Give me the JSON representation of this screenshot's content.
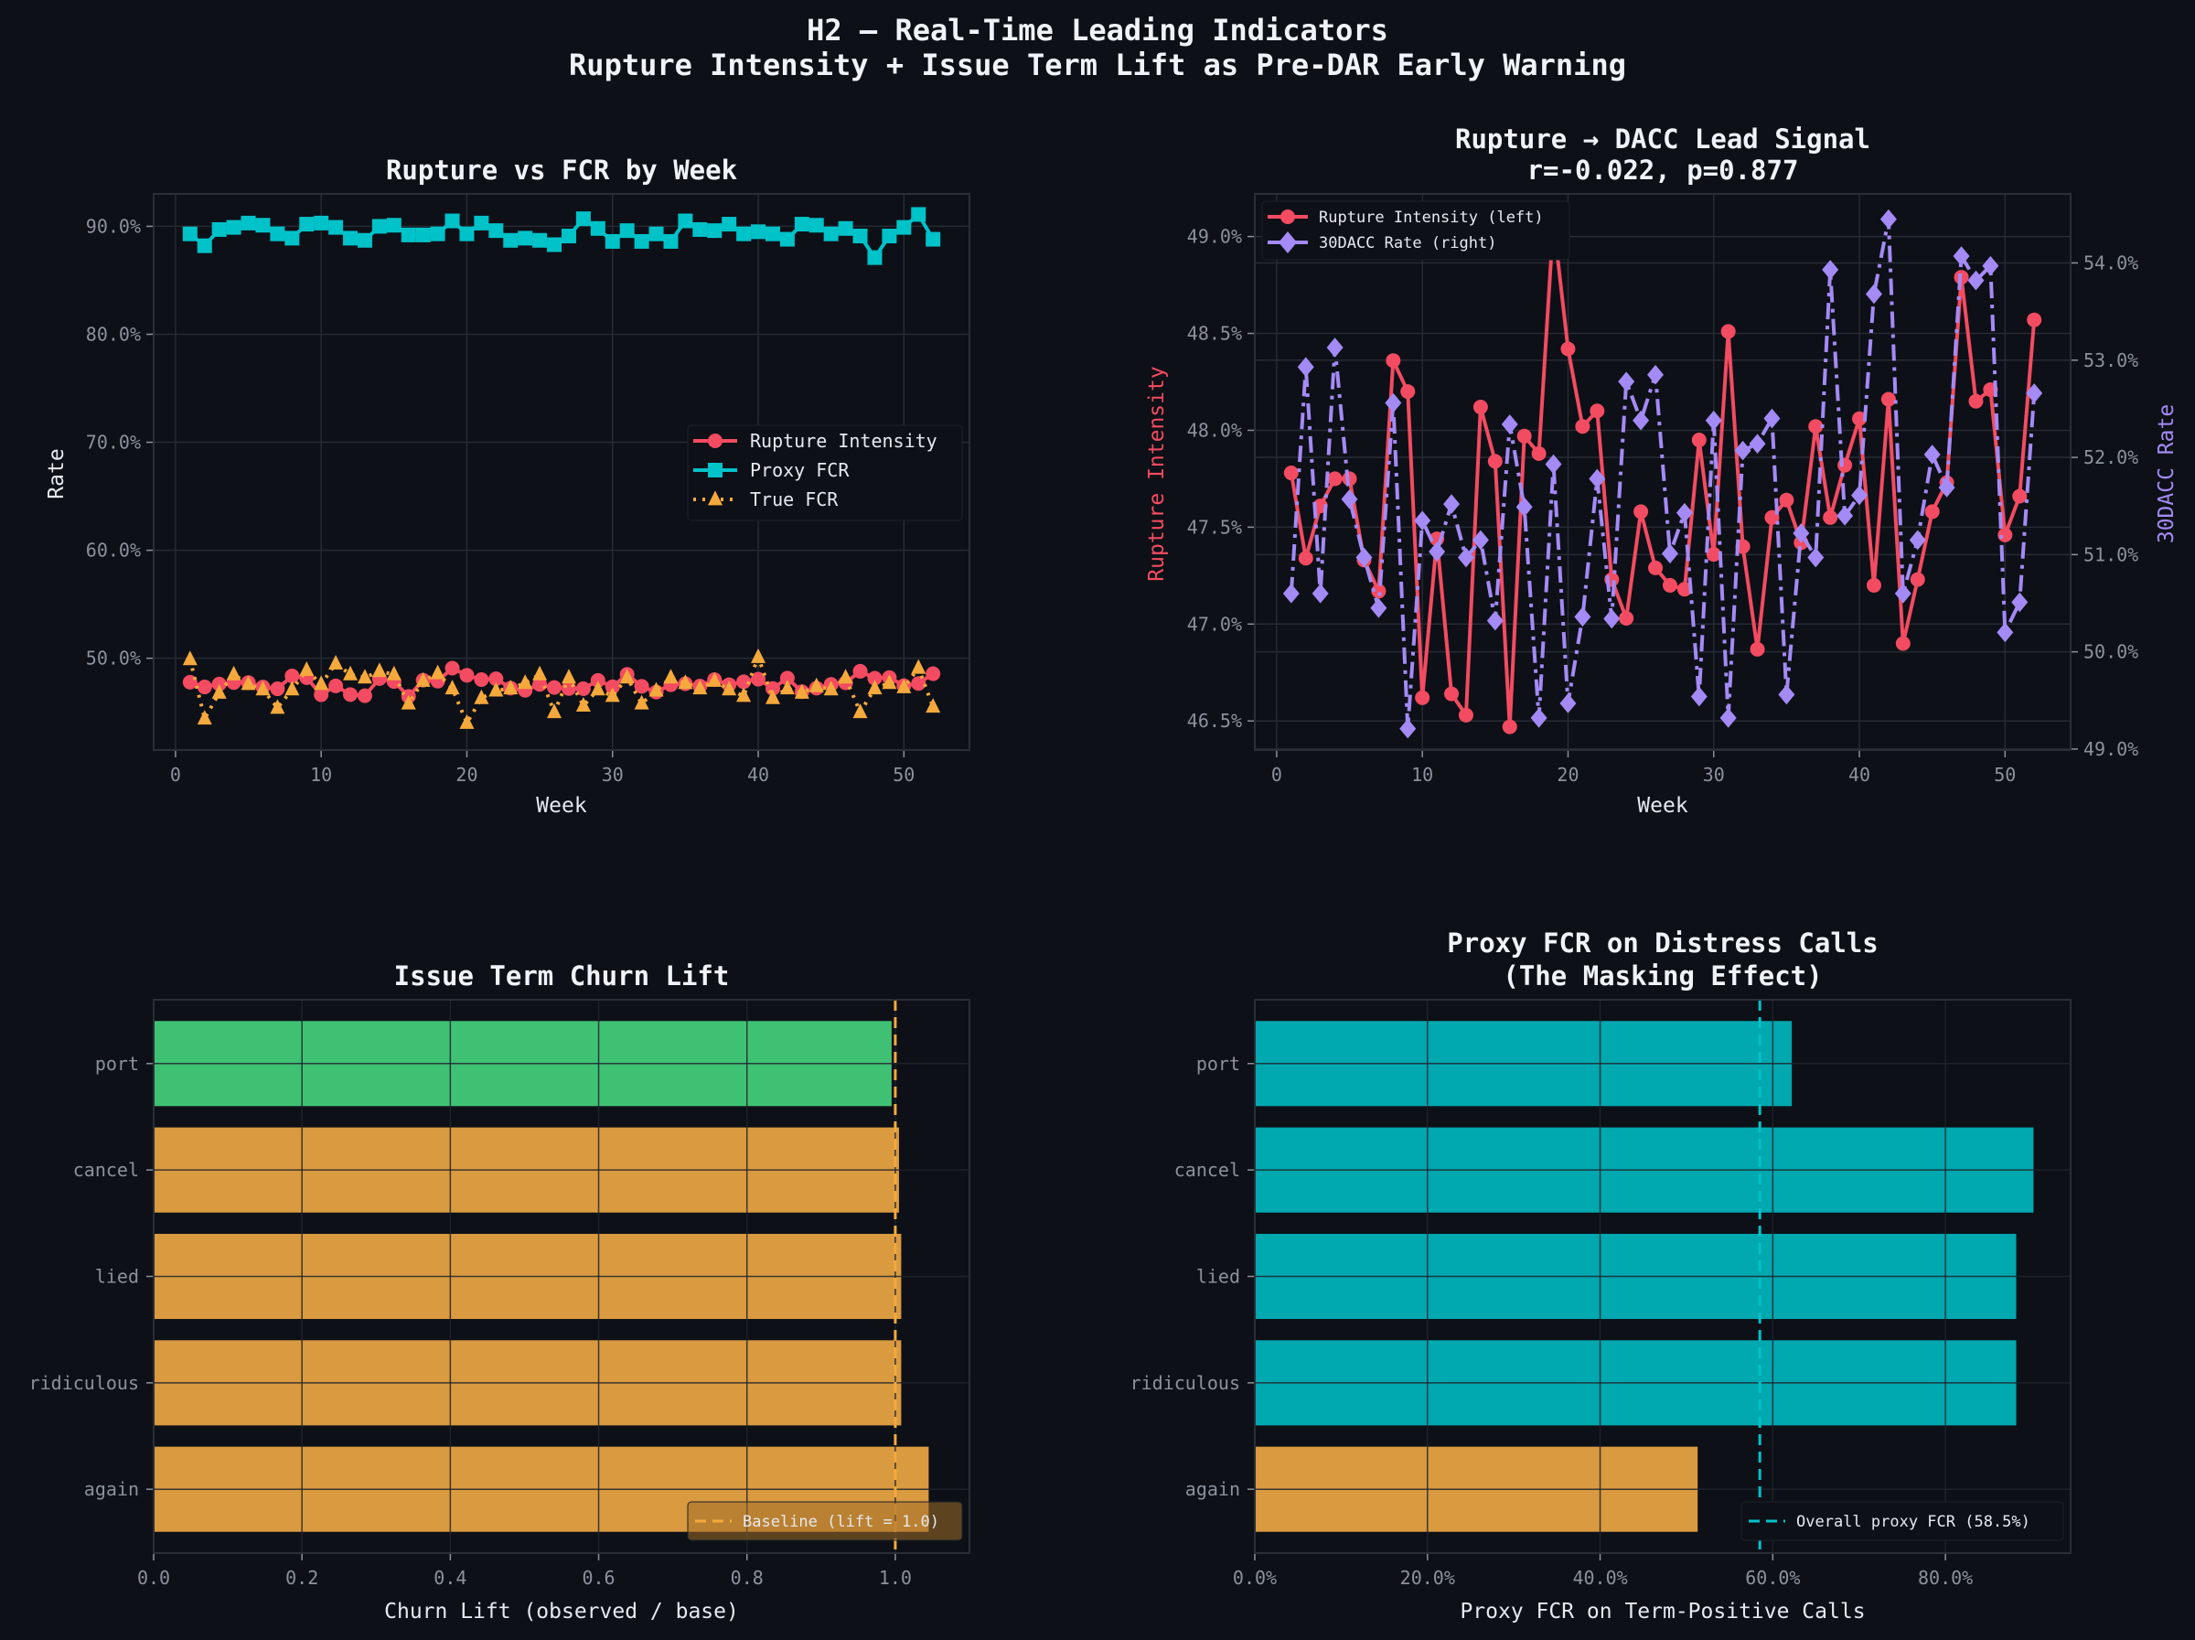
{
  "suptitle": [
    "H2 — Real-Time Leading Indicators",
    "Rupture Intensity + Issue Term Lift as Pre-DAR Early Warning"
  ],
  "colors": {
    "background": "#0d1017",
    "rupture": "#f34b61",
    "proxy_fcr": "#00c2c9",
    "true_fcr": "#f5a93c",
    "dacc": "#a48af5",
    "green_bar": "#3fc174",
    "orange_bar": "#d99a40",
    "teal_bar": "#00a8b0",
    "grid": "#262a33",
    "tick": "#8b929c",
    "text": "#e6e9ee"
  },
  "chart_data": [
    {
      "id": "rupture_vs_fcr",
      "type": "line",
      "title": "Rupture vs FCR by Week",
      "xlabel": "Week",
      "ylabel": "Rate",
      "xlim": [
        -1.5,
        54.5
      ],
      "ylim": [
        41.5,
        93.0
      ],
      "xticks": [
        0,
        10,
        20,
        30,
        40,
        50
      ],
      "yticks": [
        50,
        60,
        70,
        80,
        90
      ],
      "ytick_labels": [
        "50.0%",
        "60.0%",
        "70.0%",
        "80.0%",
        "90.0%"
      ],
      "xtick_labels": [
        "0",
        "10",
        "20",
        "30",
        "40",
        "50"
      ],
      "grid": true,
      "legend_position": "center-right",
      "x": [
        1,
        2,
        3,
        4,
        5,
        6,
        7,
        8,
        9,
        10,
        11,
        12,
        13,
        14,
        15,
        16,
        17,
        18,
        19,
        20,
        21,
        22,
        23,
        24,
        25,
        26,
        27,
        28,
        29,
        30,
        31,
        32,
        33,
        34,
        35,
        36,
        37,
        38,
        39,
        40,
        41,
        42,
        43,
        44,
        45,
        46,
        47,
        48,
        49,
        50,
        51,
        52
      ],
      "series": [
        {
          "name": "Rupture Intensity",
          "color_key": "rupture",
          "marker": "circle",
          "linestyle": "solid",
          "values": [
            47.78,
            47.34,
            47.61,
            47.75,
            47.75,
            47.33,
            47.17,
            48.36,
            48.2,
            46.62,
            47.44,
            46.64,
            46.53,
            48.12,
            47.84,
            46.47,
            47.97,
            47.88,
            49.08,
            48.42,
            48.02,
            48.1,
            47.23,
            47.03,
            47.58,
            47.29,
            47.2,
            47.18,
            47.95,
            47.36,
            48.51,
            47.4,
            46.87,
            47.55,
            47.64,
            47.42,
            48.02,
            47.55,
            47.82,
            48.06,
            47.2,
            48.16,
            46.9,
            47.23,
            47.58,
            47.73,
            48.79,
            48.15,
            48.21,
            47.46,
            47.66,
            48.57
          ]
        },
        {
          "name": "Proxy FCR",
          "color_key": "proxy_fcr",
          "marker": "square",
          "linestyle": "solid",
          "values": [
            89.3,
            88.2,
            89.7,
            89.9,
            90.3,
            90.1,
            89.3,
            88.9,
            90.2,
            90.3,
            89.9,
            88.9,
            88.7,
            90.0,
            90.1,
            89.2,
            89.2,
            89.3,
            90.5,
            89.3,
            90.3,
            89.6,
            88.7,
            88.9,
            88.7,
            88.3,
            89.1,
            90.7,
            89.8,
            88.6,
            89.6,
            88.6,
            89.3,
            88.6,
            90.5,
            89.7,
            89.6,
            90.2,
            89.3,
            89.5,
            89.3,
            88.8,
            90.2,
            90.1,
            89.3,
            89.8,
            89.1,
            87.1,
            89.1,
            89.9,
            91.1,
            88.8
          ]
        },
        {
          "name": "True FCR",
          "color_key": "true_fcr",
          "marker": "triangle",
          "linestyle": "dotted",
          "values": [
            49.9,
            44.4,
            46.8,
            48.5,
            47.6,
            47.1,
            45.4,
            47.1,
            48.9,
            47.6,
            49.5,
            48.5,
            48.2,
            48.8,
            48.5,
            45.8,
            47.9,
            48.6,
            47.2,
            44.0,
            46.3,
            47.0,
            47.2,
            47.7,
            48.5,
            45.0,
            48.2,
            45.6,
            47.1,
            46.5,
            48.2,
            45.8,
            47.0,
            48.2,
            47.7,
            47.2,
            47.9,
            47.1,
            46.5,
            50.1,
            46.3,
            47.2,
            46.8,
            47.4,
            47.1,
            48.2,
            45.0,
            47.2,
            47.7,
            47.3,
            49.1,
            45.5
          ]
        }
      ]
    },
    {
      "id": "rupture_dacc_lead",
      "type": "line",
      "title": "Rupture → DACC Lead Signal",
      "subtitle": "r=-0.022, p=0.877",
      "xlabel": "Week",
      "ylabel": "Rupture Intensity",
      "y2label": "30DACC Rate",
      "xlim": [
        -1.5,
        54.5
      ],
      "ylim": [
        46.35,
        49.22
      ],
      "y2lim": [
        48.99,
        54.71
      ],
      "xticks": [
        0,
        10,
        20,
        30,
        40,
        50
      ],
      "xtick_labels": [
        "0",
        "10",
        "20",
        "30",
        "40",
        "50"
      ],
      "yticks": [
        46.5,
        47.0,
        47.5,
        48.0,
        48.5,
        49.0
      ],
      "ytick_labels": [
        "46.5%",
        "47.0%",
        "47.5%",
        "48.0%",
        "48.5%",
        "49.0%"
      ],
      "y2ticks": [
        49,
        50,
        51,
        52,
        53,
        54
      ],
      "y2tick_labels": [
        "49.0%",
        "50.0%",
        "51.0%",
        "52.0%",
        "53.0%",
        "54.0%"
      ],
      "grid": true,
      "legend_position": "top-left",
      "x": [
        1,
        2,
        3,
        4,
        5,
        6,
        7,
        8,
        9,
        10,
        11,
        12,
        13,
        14,
        15,
        16,
        17,
        18,
        19,
        20,
        21,
        22,
        23,
        24,
        25,
        26,
        27,
        28,
        29,
        30,
        31,
        32,
        33,
        34,
        35,
        36,
        37,
        38,
        39,
        40,
        41,
        42,
        43,
        44,
        45,
        46,
        47,
        48,
        49,
        50,
        51,
        52
      ],
      "series": [
        {
          "name": "Rupture Intensity (left)",
          "axis": "left",
          "color_key": "rupture",
          "marker": "circle",
          "linestyle": "solid",
          "values": [
            47.78,
            47.34,
            47.61,
            47.75,
            47.75,
            47.33,
            47.17,
            48.36,
            48.2,
            46.62,
            47.44,
            46.64,
            46.53,
            48.12,
            47.84,
            46.47,
            47.97,
            47.88,
            49.08,
            48.42,
            48.02,
            48.1,
            47.23,
            47.03,
            47.58,
            47.29,
            47.2,
            47.18,
            47.95,
            47.36,
            48.51,
            47.4,
            46.87,
            47.55,
            47.64,
            47.42,
            48.02,
            47.55,
            47.82,
            48.06,
            47.2,
            48.16,
            46.9,
            47.23,
            47.58,
            47.73,
            48.79,
            48.15,
            48.21,
            47.46,
            47.66,
            48.57
          ]
        },
        {
          "name": "30DACC Rate (right)",
          "axis": "right",
          "color_key": "dacc",
          "marker": "diamond",
          "linestyle": "dashdot",
          "values": [
            50.6,
            52.93,
            50.6,
            53.13,
            51.57,
            50.97,
            50.45,
            52.56,
            49.21,
            51.35,
            51.03,
            51.52,
            50.97,
            51.15,
            50.32,
            52.34,
            51.49,
            49.32,
            51.93,
            49.47,
            50.36,
            51.78,
            50.34,
            52.78,
            52.38,
            52.85,
            51.01,
            51.43,
            49.54,
            52.38,
            49.32,
            52.07,
            52.14,
            52.4,
            49.56,
            51.22,
            50.97,
            53.93,
            51.4,
            51.61,
            53.68,
            54.45,
            50.6,
            51.15,
            52.03,
            51.69,
            54.07,
            53.82,
            53.97,
            50.2,
            50.51,
            52.66
          ]
        }
      ]
    },
    {
      "id": "issue_term_churn_lift",
      "type": "bar",
      "orientation": "horizontal",
      "title": "Issue Term Churn Lift",
      "xlabel": "Churn Lift (observed / base)",
      "ylabel": "",
      "xlim": [
        0.0,
        1.1
      ],
      "xticks": [
        0.0,
        0.2,
        0.4,
        0.6,
        0.8,
        1.0
      ],
      "xtick_labels": [
        "0.0",
        "0.2",
        "0.4",
        "0.6",
        "0.8",
        "1.0"
      ],
      "categories": [
        "port",
        "cancel",
        "lied",
        "ridiculous",
        "again"
      ],
      "values": [
        0.995,
        1.005,
        1.008,
        1.008,
        1.045
      ],
      "bar_color_keys": [
        "green_bar",
        "orange_bar",
        "orange_bar",
        "orange_bar",
        "orange_bar"
      ],
      "reference_line": {
        "value": 1.0,
        "label": "Baseline (lift = 1.0)",
        "color_key": "true_fcr",
        "style": "dashed"
      },
      "grid": true,
      "legend_position": "bottom-right"
    },
    {
      "id": "proxy_fcr_distress",
      "type": "bar",
      "orientation": "horizontal",
      "title": "Proxy FCR on Distress Calls",
      "subtitle": "(The Masking Effect)",
      "xlabel": "Proxy FCR on Term-Positive Calls",
      "ylabel": "",
      "xlim": [
        0.0,
        94.5
      ],
      "xticks": [
        0,
        20,
        40,
        60,
        80
      ],
      "xtick_labels": [
        "0.0%",
        "20.0%",
        "40.0%",
        "60.0%",
        "80.0%"
      ],
      "categories": [
        "port",
        "cancel",
        "lied",
        "ridiculous",
        "again"
      ],
      "values": [
        62.2,
        90.2,
        88.2,
        88.2,
        51.3
      ],
      "bar_color_keys": [
        "teal_bar",
        "teal_bar",
        "teal_bar",
        "teal_bar",
        "orange_bar"
      ],
      "reference_line": {
        "value": 58.5,
        "label": "Overall proxy FCR (58.5%)",
        "color_key": "proxy_fcr",
        "style": "dashed"
      },
      "grid": true,
      "legend_position": "bottom-right"
    }
  ]
}
